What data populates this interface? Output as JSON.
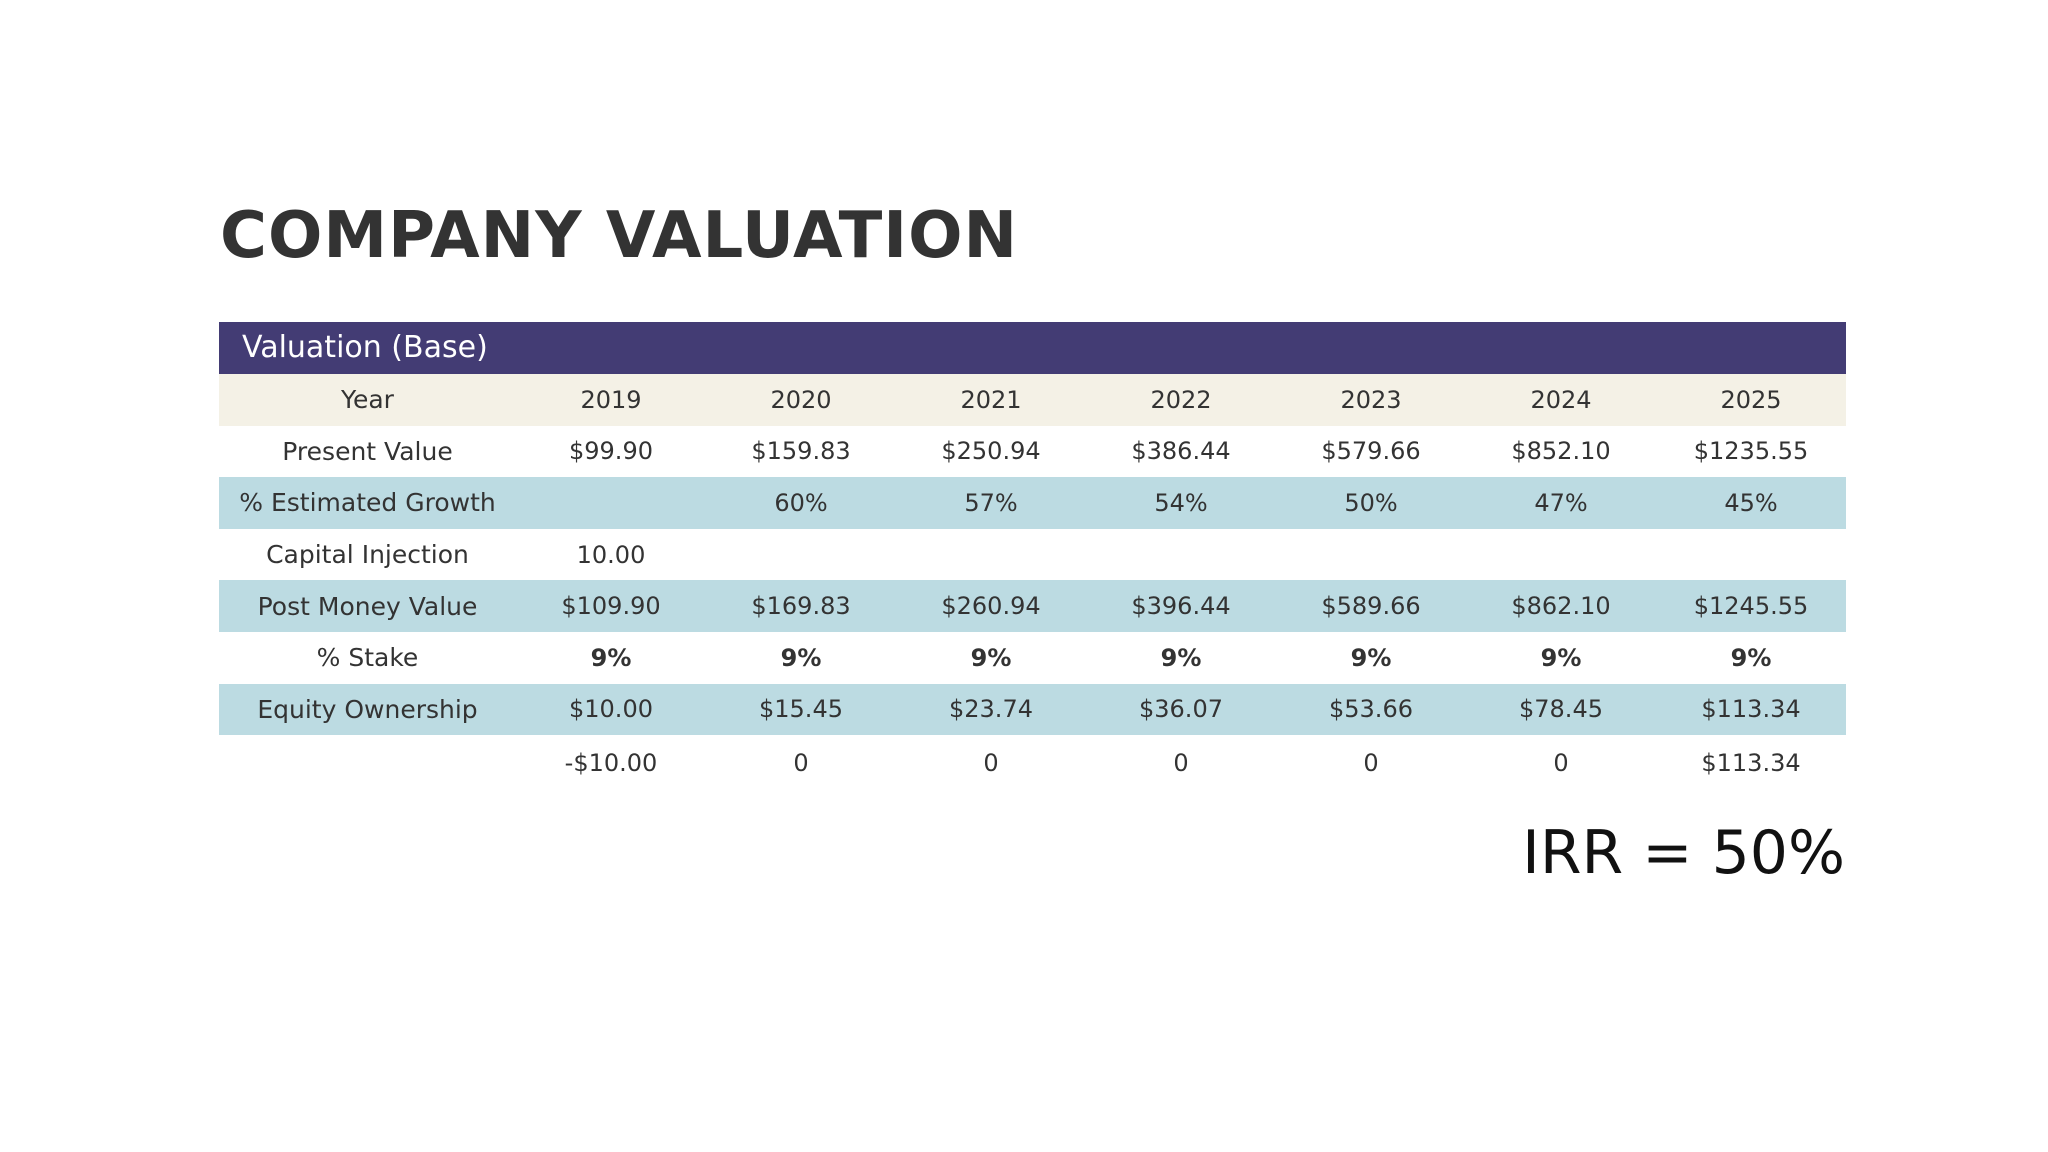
{
  "title": "COMPANY VALUATION",
  "table": {
    "header": "Valuation (Base)",
    "years": [
      "2019",
      "2020",
      "2021",
      "2022",
      "2023",
      "2024",
      "2025"
    ],
    "rows": [
      {
        "label": "Year",
        "values": [
          "2019",
          "2020",
          "2021",
          "2022",
          "2023",
          "2024",
          "2025"
        ]
      },
      {
        "label": "Present Value",
        "values": [
          "$99.90",
          "$159.83",
          "$250.94",
          "$386.44",
          "$579.66",
          "$852.10",
          "$1235.55"
        ]
      },
      {
        "label": "% Estimated Growth",
        "values": [
          "",
          "60%",
          "57%",
          "54%",
          "50%",
          "47%",
          "45%"
        ]
      },
      {
        "label": "Capital Injection",
        "values": [
          "10.00",
          "",
          "",
          "",
          "",
          "",
          ""
        ]
      },
      {
        "label": "Post Money Value",
        "values": [
          "$109.90",
          "$169.83",
          "$260.94",
          "$396.44",
          "$589.66",
          "$862.10",
          "$1245.55"
        ]
      },
      {
        "label": "% Stake",
        "values": [
          "9%",
          "9%",
          "9%",
          "9%",
          "9%",
          "9%",
          "9%"
        ]
      },
      {
        "label": "Equity Ownership",
        "values": [
          "$10.00",
          "$15.45",
          "$23.74",
          "$36.07",
          "$53.66",
          "$78.45",
          "$113.34"
        ]
      },
      {
        "label": "",
        "values": [
          "-$10.00",
          "0",
          "0",
          "0",
          "0",
          "0",
          "$113.34"
        ]
      }
    ]
  },
  "irr": "IRR = 50%",
  "colors": {
    "header_bg": "#433c74",
    "year_row_bg": "#f4f1e6",
    "stripe_bg": "#bcdbe2",
    "stake_text": "#cc2a1f",
    "body_text": "#333333"
  }
}
